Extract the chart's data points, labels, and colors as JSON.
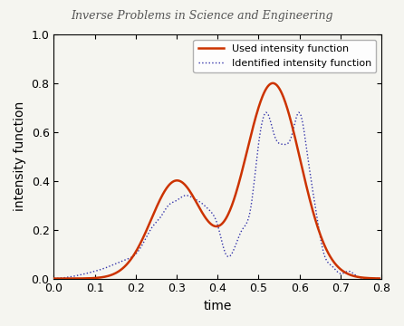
{
  "title": "Inverse Problems in Science and Engineering",
  "xlabel": "time",
  "ylabel": "intensity function",
  "xlim": [
    0,
    0.8
  ],
  "ylim": [
    0,
    1.0
  ],
  "xticks": [
    0,
    0.1,
    0.2,
    0.3,
    0.4,
    0.5,
    0.6,
    0.7,
    0.8
  ],
  "yticks": [
    0,
    0.2,
    0.4,
    0.6,
    0.8,
    1.0
  ],
  "legend_entries": [
    "Used intensity function",
    "Identified intensity function"
  ],
  "red_color": "#cc3300",
  "blue_color": "#3333aa",
  "background_color": "#f5f5f0",
  "red_lw": 1.8,
  "blue_lw": 1.0,
  "title_fontsize": 9,
  "axis_fontsize": 10,
  "tick_fontsize": 9
}
